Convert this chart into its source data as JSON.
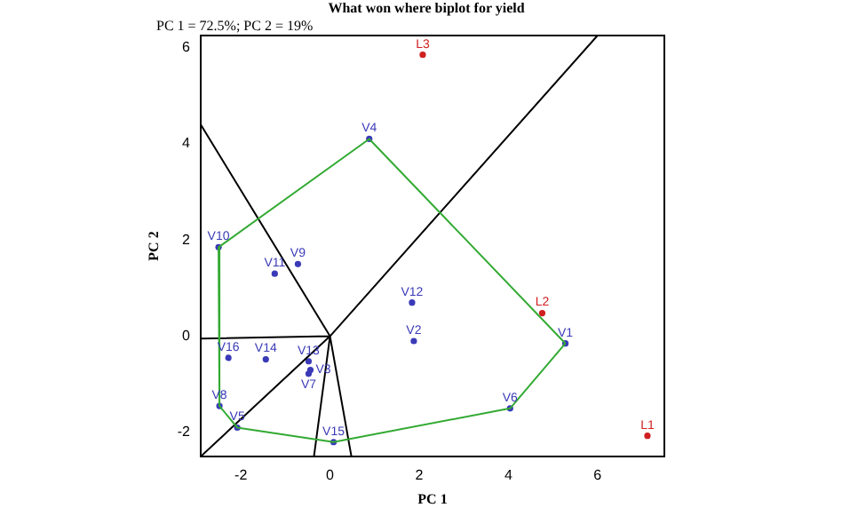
{
  "chart_data": {
    "type": "scatter",
    "title": "What won where biplot for yield",
    "subtitle": "PC 1 = 72.5%; PC 2 = 19%",
    "xlabel": "PC 1",
    "ylabel": "PC 2",
    "xlim": [
      -2.9,
      7.5
    ],
    "ylim": [
      -2.5,
      6.25
    ],
    "xticks": [
      -2,
      0,
      2,
      4,
      6
    ],
    "yticks": [
      -2,
      0,
      2,
      4,
      6
    ],
    "grid": false,
    "legend": false,
    "marker": "none",
    "series": [
      {
        "type": "line",
        "color": "#33aa33",
        "x": [
          -2.5,
          0.88,
          5.28
        ],
        "values": [
          1.85,
          4.1,
          -0.15
        ]
      },
      {
        "type": "line",
        "color": "#33aa33",
        "x": [
          -2.5,
          -2.48,
          -2.08,
          0.08,
          4.04,
          5.28
        ],
        "values": [
          1.85,
          -1.45,
          -1.9,
          -2.2,
          -1.5,
          -0.15
        ]
      },
      {
        "type": "line",
        "color": "#000000",
        "x": [
          -2.9,
          0,
          6.0,
          null,
          -2.9,
          0,
          -2.9,
          null,
          -0.36,
          0,
          0.48
        ],
        "values": [
          4.4,
          0,
          6.25,
          null,
          -0.05,
          0,
          -2.5,
          null,
          -2.5,
          0,
          -2.5
        ]
      },
      {
        "marker": "circle",
        "color": "#3a3ab8",
        "x": [
          5.28,
          1.88,
          -0.44,
          0.88,
          -2.08,
          4.04,
          -0.48,
          -2.48,
          -0.72,
          -2.5,
          -1.24,
          1.84,
          -0.48,
          -1.44,
          0.08,
          -2.28
        ],
        "values": [
          -0.15,
          -0.1,
          -0.7,
          4.1,
          -1.9,
          -1.5,
          -0.78,
          -1.45,
          1.5,
          1.85,
          1.3,
          0.7,
          -0.52,
          -0.48,
          -2.2,
          -0.45
        ],
        "value_labels": [
          "V1",
          "V2",
          "V3",
          "V4",
          "V5",
          "V6",
          "V7",
          "V8",
          "V9",
          "V10",
          "V11",
          "V12",
          "V13",
          "V14",
          "V15",
          "V16"
        ]
      },
      {
        "marker": "circle",
        "color": "#d02020",
        "x": [
          7.12,
          4.76,
          2.08
        ],
        "values": [
          -2.07,
          0.48,
          5.85
        ],
        "value_labels": [
          "L1",
          "L2",
          "L3"
        ]
      }
    ]
  }
}
